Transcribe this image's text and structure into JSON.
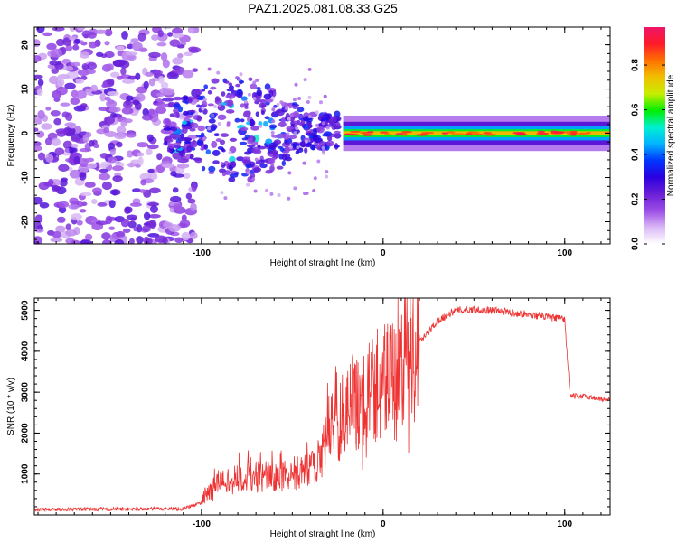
{
  "figure": {
    "title": "PAZ1.2025.081.08.33.G25"
  },
  "chart_data": [
    {
      "type": "heatmap",
      "name": "spectrogram",
      "xlabel": "Height of straight line (km)",
      "ylabel": "Frequency (Hz)",
      "xlim": [
        -192,
        125
      ],
      "ylim": [
        -25,
        24
      ],
      "xticks": [
        -100,
        0,
        100
      ],
      "xtick_labels": [
        "-100",
        "0",
        "100"
      ],
      "yticks": [
        -20,
        -10,
        0,
        10,
        20
      ],
      "ytick_labels": [
        "-20",
        "-10",
        "0",
        "10",
        "20"
      ],
      "colorbar": {
        "label": "Normalized spectral amplitude",
        "range": [
          0,
          0.97
        ],
        "ticks": [
          0.0,
          0.2,
          0.4,
          0.6,
          0.8
        ],
        "tick_labels": [
          "0.0",
          "0.2",
          "0.4",
          "0.6",
          "0.8"
        ],
        "colormap": [
          "#ffffff",
          "#d9b8f5",
          "#9b4ce6",
          "#6a1fd6",
          "#2a00e0",
          "#0036ff",
          "#00b4ff",
          "#00f0d0",
          "#00ee00",
          "#c8ee00",
          "#f0c000",
          "#ff7000",
          "#ff1a2a",
          "#ee1566"
        ]
      },
      "regions": [
        {
          "x_range": [
            -192,
            -103
          ],
          "description": "scattered noise",
          "freq_band": [
            -25,
            24
          ],
          "level": 0.12
        },
        {
          "x_range": [
            -120,
            -25
          ],
          "description": "fan of signal",
          "freq_band": [
            -10,
            9
          ],
          "level": 0.25
        },
        {
          "x_range": [
            -25,
            125
          ],
          "description": "steady carrier",
          "center_freq": 0,
          "level": 0.85
        }
      ]
    },
    {
      "type": "line",
      "name": "snr",
      "xlabel": "Height of straight line (km)",
      "ylabel": "SNR (10 * v/v)",
      "xlim": [
        -192,
        125
      ],
      "ylim": [
        0,
        5300
      ],
      "xticks": [
        -100,
        0,
        100
      ],
      "xtick_labels": [
        "-100",
        "0",
        "100"
      ],
      "yticks": [
        1000,
        2000,
        3000,
        4000,
        5000
      ],
      "ytick_labels": [
        "1000",
        "2000",
        "3000",
        "4000",
        "5000"
      ],
      "color": "#ee3333",
      "envelope": {
        "x": [
          -192,
          -110,
          -100,
          -90,
          -80,
          -70,
          -60,
          -50,
          -40,
          -30,
          -25,
          -20,
          -10,
          0,
          10,
          20,
          30,
          40,
          50,
          60,
          80,
          100,
          103,
          110,
          125
        ],
        "y": [
          130,
          150,
          300,
          600,
          650,
          700,
          700,
          750,
          800,
          1400,
          2200,
          2600,
          2900,
          3300,
          3700,
          4200,
          4750,
          5000,
          5020,
          5000,
          4900,
          4780,
          2900,
          2900,
          2800
        ]
      }
    }
  ]
}
